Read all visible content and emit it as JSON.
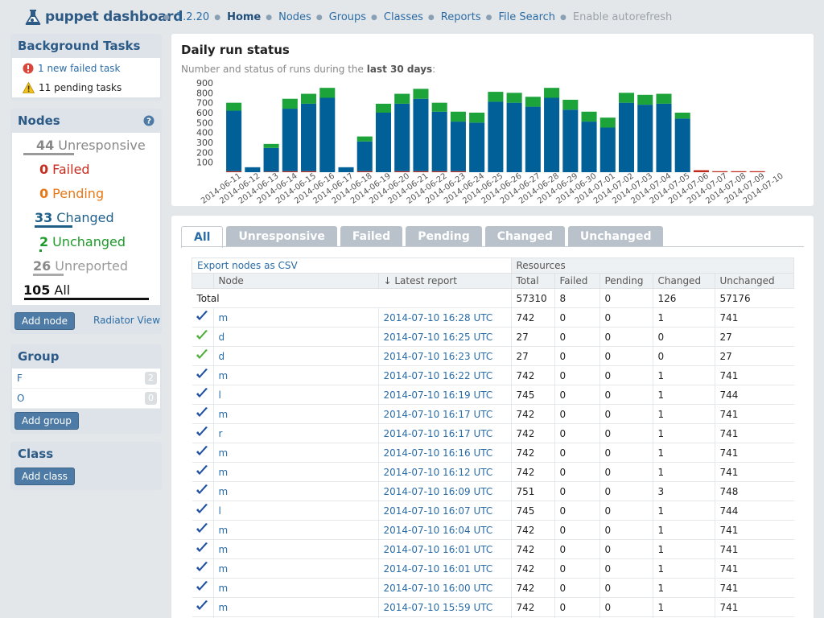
{
  "app": {
    "title": "puppet dashboard",
    "version": "1.2.20"
  },
  "nav": {
    "home": "Home",
    "nodes": "Nodes",
    "groups": "Groups",
    "classes": "Classes",
    "reports": "Reports",
    "file_search": "File Search",
    "autorefresh": "Enable autorefresh"
  },
  "background_tasks": {
    "title": "Background Tasks",
    "failed": "1 new failed task",
    "pending": "11 pending tasks"
  },
  "nodes_box": {
    "title": "Nodes",
    "help_icon": "question-icon",
    "stats": [
      {
        "count": "44",
        "label": "Unresponsive",
        "color": "#888888",
        "bar_color": "#999999",
        "bar_fraction": 0.42
      },
      {
        "count": "0",
        "label": "Failed",
        "color": "#c62d1f",
        "bar_color": "#c62d1f",
        "bar_fraction": 0
      },
      {
        "count": "0",
        "label": "Pending",
        "color": "#e77817",
        "bar_color": "#e77817",
        "bar_fraction": 0
      },
      {
        "count": "33",
        "label": "Changed",
        "color": "#1e5f8a",
        "bar_color": "#1e5f8a",
        "bar_fraction": 0.31
      },
      {
        "count": "2",
        "label": "Unchanged",
        "color": "#1c9a2a",
        "bar_color": "#1c9a2a",
        "bar_fraction": 0.02
      },
      {
        "count": "26",
        "label": "Unreported",
        "color": "#999999",
        "bar_color": "#aaaaaa",
        "bar_fraction": 0.25
      },
      {
        "count": "105",
        "label": "All",
        "color": "#111111",
        "bar_color": "#111111",
        "bar_fraction": 1.0
      }
    ],
    "add_node": "Add node",
    "radiator": "Radiator View"
  },
  "group_box": {
    "title": "Group",
    "items": [
      {
        "name": "F",
        "count": "2"
      },
      {
        "name": "O",
        "count": "0"
      }
    ],
    "add": "Add group"
  },
  "class_box": {
    "title": "Class",
    "add": "Add class"
  },
  "chart_data": {
    "type": "bar",
    "title": "Daily run status",
    "subtitle_prefix": "Number and status of runs during the ",
    "subtitle_bold": "last 30 days",
    "subtitle_suffix": ":",
    "ylim": [
      0,
      900
    ],
    "yticks": [
      100,
      200,
      300,
      400,
      500,
      600,
      700,
      800,
      900
    ],
    "categories": [
      "2014-06-11",
      "2014-06-12",
      "2014-06-13",
      "2014-06-14",
      "2014-06-15",
      "2014-06-16",
      "2014-06-17",
      "2014-06-18",
      "2014-06-19",
      "2014-06-20",
      "2014-06-21",
      "2014-06-22",
      "2014-06-23",
      "2014-06-24",
      "2014-06-25",
      "2014-06-26",
      "2014-06-27",
      "2014-06-28",
      "2014-06-29",
      "2014-06-30",
      "2014-07-01",
      "2014-07-02",
      "2014-07-03",
      "2014-07-04",
      "2014-07-05",
      "2014-07-06",
      "2014-07-07",
      "2014-07-08",
      "2014-07-09",
      "2014-07-10"
    ],
    "series": [
      {
        "color": "#c02a1a",
        "values": [
          10,
          0,
          5,
          10,
          10,
          0,
          0,
          10,
          0,
          10,
          10,
          10,
          10,
          0,
          0,
          0,
          0,
          0,
          0,
          0,
          0,
          0,
          0,
          0,
          0,
          20,
          10,
          10,
          10,
          0
        ]
      },
      {
        "color": "#006097",
        "values": [
          610,
          50,
          240,
          630,
          680,
          750,
          50,
          300,
          600,
          680,
          730,
          600,
          500,
          500,
          710,
          700,
          660,
          750,
          630,
          510,
          450,
          700,
          680,
          690,
          540,
          0,
          0,
          0,
          0,
          0
        ]
      },
      {
        "color": "#1ca33a",
        "values": [
          80,
          0,
          40,
          100,
          100,
          100,
          0,
          50,
          90,
          100,
          100,
          90,
          100,
          100,
          100,
          100,
          100,
          100,
          100,
          100,
          100,
          100,
          100,
          100,
          60,
          0,
          0,
          0,
          0,
          0
        ]
      }
    ]
  },
  "tabs": [
    "All",
    "Unresponsive",
    "Failed",
    "Pending",
    "Changed",
    "Unchanged"
  ],
  "table": {
    "export": "Export nodes as CSV",
    "resources": "Resources",
    "headers": [
      "Node",
      "↓ Latest report",
      "Total",
      "Failed",
      "Pending",
      "Changed",
      "Unchanged"
    ],
    "total": {
      "label": "Total",
      "total": "57310",
      "failed": "8",
      "pending": "0",
      "changed": "126",
      "unchanged": "57176"
    },
    "rows": [
      {
        "icon": "changed",
        "node": "m",
        "report": "2014-07-10 16:28 UTC",
        "total": "742",
        "failed": "0",
        "pending": "0",
        "changed": "1",
        "unchanged": "741"
      },
      {
        "icon": "unchanged",
        "node": "d",
        "report": "2014-07-10 16:25 UTC",
        "total": "27",
        "failed": "0",
        "pending": "0",
        "changed": "0",
        "unchanged": "27"
      },
      {
        "icon": "unchanged",
        "node": "d",
        "report": "2014-07-10 16:23 UTC",
        "total": "27",
        "failed": "0",
        "pending": "0",
        "changed": "0",
        "unchanged": "27"
      },
      {
        "icon": "changed",
        "node": "m",
        "report": "2014-07-10 16:22 UTC",
        "total": "742",
        "failed": "0",
        "pending": "0",
        "changed": "1",
        "unchanged": "741"
      },
      {
        "icon": "changed",
        "node": "l",
        "report": "2014-07-10 16:19 UTC",
        "total": "745",
        "failed": "0",
        "pending": "0",
        "changed": "1",
        "unchanged": "744"
      },
      {
        "icon": "changed",
        "node": "m",
        "report": "2014-07-10 16:17 UTC",
        "total": "742",
        "failed": "0",
        "pending": "0",
        "changed": "1",
        "unchanged": "741"
      },
      {
        "icon": "changed",
        "node": "r",
        "report": "2014-07-10 16:17 UTC",
        "total": "742",
        "failed": "0",
        "pending": "0",
        "changed": "1",
        "unchanged": "741"
      },
      {
        "icon": "changed",
        "node": "m",
        "report": "2014-07-10 16:16 UTC",
        "total": "742",
        "failed": "0",
        "pending": "0",
        "changed": "1",
        "unchanged": "741"
      },
      {
        "icon": "changed",
        "node": "m",
        "report": "2014-07-10 16:12 UTC",
        "total": "742",
        "failed": "0",
        "pending": "0",
        "changed": "1",
        "unchanged": "741"
      },
      {
        "icon": "changed",
        "node": "m",
        "report": "2014-07-10 16:09 UTC",
        "total": "751",
        "failed": "0",
        "pending": "0",
        "changed": "3",
        "unchanged": "748"
      },
      {
        "icon": "changed",
        "node": "l",
        "report": "2014-07-10 16:07 UTC",
        "total": "745",
        "failed": "0",
        "pending": "0",
        "changed": "1",
        "unchanged": "744"
      },
      {
        "icon": "changed",
        "node": "m",
        "report": "2014-07-10 16:04 UTC",
        "total": "742",
        "failed": "0",
        "pending": "0",
        "changed": "1",
        "unchanged": "741"
      },
      {
        "icon": "changed",
        "node": "m",
        "report": "2014-07-10 16:01 UTC",
        "total": "742",
        "failed": "0",
        "pending": "0",
        "changed": "1",
        "unchanged": "741"
      },
      {
        "icon": "changed",
        "node": "m",
        "report": "2014-07-10 16:01 UTC",
        "total": "742",
        "failed": "0",
        "pending": "0",
        "changed": "1",
        "unchanged": "741"
      },
      {
        "icon": "changed",
        "node": "m",
        "report": "2014-07-10 16:00 UTC",
        "total": "742",
        "failed": "0",
        "pending": "0",
        "changed": "1",
        "unchanged": "741"
      },
      {
        "icon": "changed",
        "node": "m",
        "report": "2014-07-10 15:59 UTC",
        "total": "742",
        "failed": "0",
        "pending": "0",
        "changed": "1",
        "unchanged": "741"
      },
      {
        "icon": "changed",
        "node": "",
        "report": "",
        "total": "",
        "failed": "",
        "pending": "",
        "changed": "",
        "unchanged": ""
      }
    ]
  }
}
